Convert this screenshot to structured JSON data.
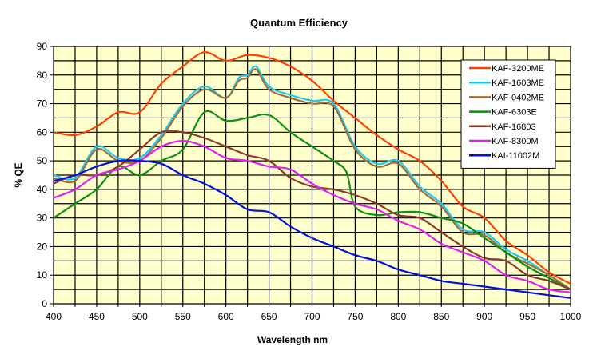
{
  "chart_data": {
    "type": "line",
    "title": "Quantum Efficiency",
    "xlabel": "Wavelength  nm",
    "ylabel": "% QE",
    "xlim": [
      400,
      1000
    ],
    "ylim": [
      0,
      90
    ],
    "x_ticks": [
      400,
      450,
      500,
      550,
      600,
      650,
      700,
      750,
      800,
      850,
      900,
      950,
      1000
    ],
    "y_ticks": [
      0,
      10,
      20,
      30,
      40,
      50,
      60,
      70,
      80,
      90
    ],
    "x_tick_labels": [
      "400",
      "450",
      "500",
      "550",
      "600",
      "650",
      "700",
      "750",
      "800",
      "850",
      "900",
      "950",
      "1000"
    ],
    "y_tick_labels": [
      "0",
      "10",
      "20",
      "30",
      "40",
      "50",
      "60",
      "70",
      "80",
      "90"
    ],
    "grid": true,
    "grid_x_step": 25,
    "grid_y_step": 5,
    "plot_background": "#ffffcc",
    "legend_position": "top-right",
    "series": [
      {
        "name": "KAF-3200ME",
        "color": "#ff4000",
        "x": [
          400,
          425,
          450,
          475,
          500,
          525,
          550,
          575,
          600,
          625,
          650,
          675,
          700,
          725,
          750,
          775,
          800,
          825,
          850,
          875,
          900,
          925,
          950,
          975,
          1000
        ],
        "y": [
          60,
          59,
          62,
          67,
          67,
          77,
          83,
          88,
          85,
          87,
          86,
          83,
          78,
          71,
          65,
          59,
          54,
          50,
          43,
          34,
          30,
          22,
          17,
          11,
          7
        ]
      },
      {
        "name": "KAF-1603ME",
        "color": "#1ec8f0",
        "x": [
          400,
          425,
          450,
          475,
          500,
          525,
          550,
          575,
          600,
          615,
          625,
          635,
          650,
          675,
          700,
          725,
          750,
          775,
          800,
          825,
          850,
          875,
          900,
          925,
          950,
          975,
          1000
        ],
        "y": [
          45,
          44,
          55,
          51,
          51,
          59,
          70,
          76,
          72,
          79,
          80,
          83,
          76,
          73,
          71,
          70,
          55,
          49,
          50,
          41,
          35,
          26,
          25,
          19,
          15,
          10,
          5
        ]
      },
      {
        "name": "KAF-0402ME",
        "color": "#a0703c",
        "x": [
          400,
          425,
          450,
          475,
          500,
          525,
          550,
          575,
          600,
          615,
          625,
          635,
          650,
          675,
          700,
          725,
          750,
          775,
          800,
          825,
          850,
          875,
          900,
          925,
          950,
          975,
          1000
        ],
        "y": [
          44,
          43,
          54,
          50,
          50,
          58,
          69,
          75,
          72,
          78,
          79,
          82,
          75,
          72,
          70,
          69,
          54,
          48,
          49,
          40,
          34,
          25,
          24,
          18,
          14,
          10,
          5
        ]
      },
      {
        "name": "KAF-6303E",
        "color": "#109010",
        "x": [
          400,
          425,
          450,
          475,
          500,
          525,
          550,
          575,
          600,
          625,
          650,
          675,
          700,
          725,
          740,
          750,
          775,
          800,
          825,
          850,
          875,
          900,
          925,
          950,
          975,
          1000
        ],
        "y": [
          30,
          35,
          40,
          48,
          45,
          50,
          54,
          67,
          64,
          65,
          66,
          60,
          55,
          50,
          46,
          34,
          31,
          32,
          32,
          30,
          28,
          23,
          18,
          13,
          9,
          5
        ]
      },
      {
        "name": "KAF-16803",
        "color": "#8b3a2a",
        "x": [
          400,
          425,
          450,
          475,
          500,
          525,
          550,
          575,
          600,
          625,
          650,
          675,
          700,
          725,
          750,
          775,
          800,
          825,
          850,
          875,
          900,
          925,
          950,
          975,
          1000
        ],
        "y": [
          42,
          45,
          45,
          48,
          54,
          60,
          60,
          58,
          55,
          52,
          50,
          44,
          41,
          40,
          38,
          35,
          31,
          30,
          25,
          20,
          16,
          15,
          10,
          8,
          5
        ]
      },
      {
        "name": "KAF-8300M",
        "color": "#e020f0",
        "x": [
          400,
          425,
          450,
          475,
          500,
          525,
          550,
          575,
          600,
          625,
          650,
          675,
          700,
          725,
          750,
          775,
          800,
          825,
          850,
          875,
          900,
          925,
          950,
          975,
          1000
        ],
        "y": [
          37,
          40,
          45,
          47,
          50,
          55,
          57,
          55,
          51,
          50,
          48,
          47,
          42,
          38,
          35,
          33,
          29,
          26,
          21,
          18,
          15,
          10,
          8,
          5,
          4
        ]
      },
      {
        "name": "KAI-11002M",
        "color": "#0010e0",
        "x": [
          400,
          425,
          450,
          475,
          500,
          525,
          550,
          575,
          600,
          625,
          650,
          675,
          700,
          725,
          750,
          775,
          800,
          825,
          850,
          875,
          900,
          925,
          950,
          975,
          1000
        ],
        "y": [
          43,
          45,
          48,
          50,
          50,
          49,
          45,
          42,
          38,
          33,
          32,
          27,
          23,
          20,
          17,
          15,
          12,
          10,
          8,
          7,
          6,
          5,
          4,
          3,
          2
        ]
      }
    ]
  }
}
